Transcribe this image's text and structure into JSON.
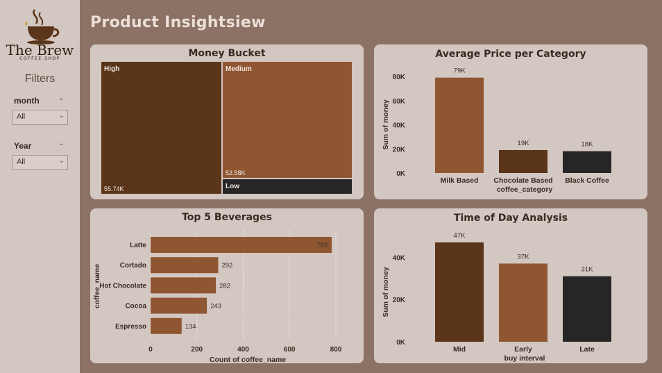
{
  "page": {
    "title": "Product Insightsiew"
  },
  "logo": {
    "name": "The Brew",
    "subtitle": "COFFEE SHOP"
  },
  "filters": {
    "heading": "Filters",
    "month": {
      "label": "month",
      "value": "All"
    },
    "year": {
      "label": "Year",
      "value": "All"
    }
  },
  "colors": {
    "dark_brown": "#5a3519",
    "mid_brown": "#8f5632",
    "charcoal": "#262626",
    "panel": "#d3c7c1",
    "background": "#8c7265"
  },
  "chart_data": [
    {
      "id": "money_bucket",
      "type": "treemap",
      "title": "Money Bucket",
      "items": [
        {
          "name": "High",
          "value": 55.74,
          "label": "55.74K"
        },
        {
          "name": "Medium",
          "value": 52.58,
          "label": "52.58K"
        },
        {
          "name": "Low",
          "value": null,
          "label": ""
        }
      ]
    },
    {
      "id": "avg_price",
      "type": "bar",
      "title": "Average Price per Category",
      "categories": [
        "Milk Based",
        "Chocolate Based",
        "Black Coffee"
      ],
      "values": [
        79,
        19,
        18
      ],
      "value_labels": [
        "79K",
        "19K",
        "18K"
      ],
      "xlabel": "coffee_category",
      "ylabel": "Sum of money",
      "yticks": [
        0,
        20,
        40,
        60,
        80
      ],
      "ytick_labels": [
        "0K",
        "20K",
        "40K",
        "60K",
        "80K"
      ],
      "ylim": [
        0,
        80
      ]
    },
    {
      "id": "top5",
      "type": "bar",
      "orientation": "horizontal",
      "title": "Top 5 Beverages",
      "categories": [
        "Latte",
        "Cortado",
        "Hot Chocolate",
        "Cocoa",
        "Espresso"
      ],
      "values": [
        782,
        292,
        282,
        243,
        134
      ],
      "xlabel": "Count of coffee_name",
      "ylabel": "coffee_name",
      "xticks": [
        0,
        200,
        400,
        600,
        800
      ],
      "xtick_labels": [
        "0",
        "200",
        "400",
        "600",
        "800"
      ],
      "xlim": [
        0,
        800
      ]
    },
    {
      "id": "time_of_day",
      "type": "bar",
      "title": "Time of Day Analysis",
      "categories": [
        "Mid",
        "Early",
        "Late"
      ],
      "values": [
        47,
        37,
        31
      ],
      "value_labels": [
        "47K",
        "37K",
        "31K"
      ],
      "xlabel": "buy interval",
      "ylabel": "Sum of money",
      "yticks": [
        0,
        20,
        40
      ],
      "ytick_labels": [
        "0K",
        "20K",
        "40K"
      ],
      "ylim": [
        0,
        47
      ]
    }
  ]
}
